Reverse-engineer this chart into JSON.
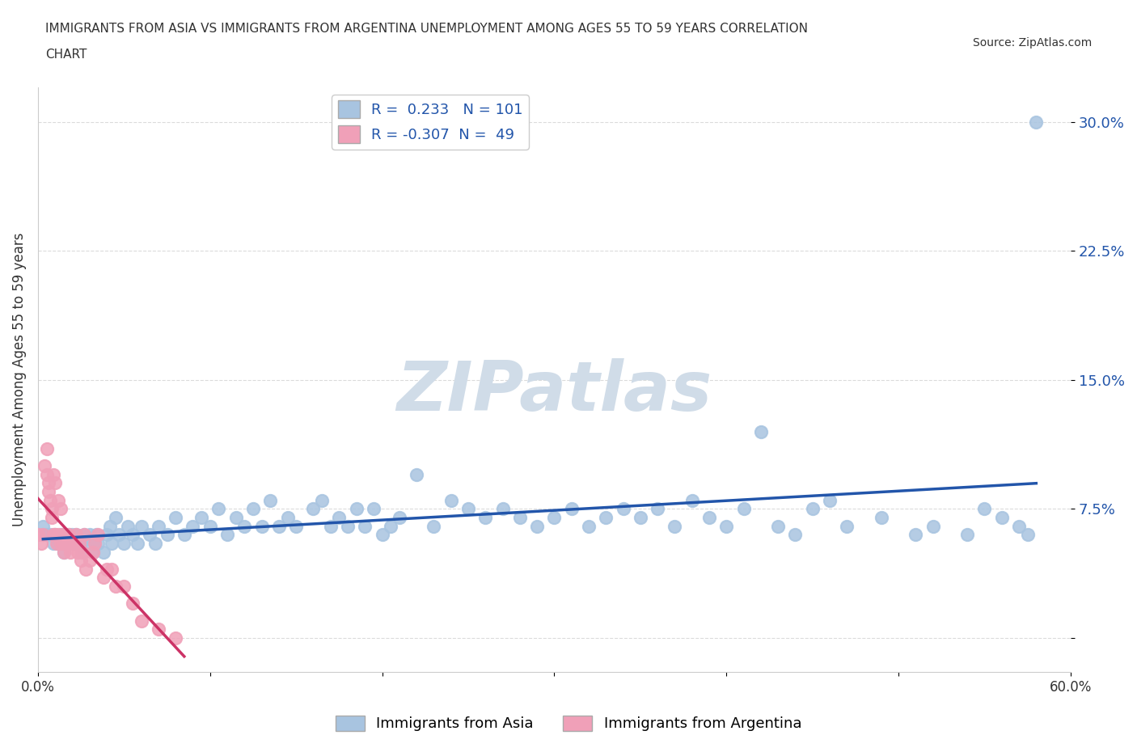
{
  "title_line1": "IMMIGRANTS FROM ASIA VS IMMIGRANTS FROM ARGENTINA UNEMPLOYMENT AMONG AGES 55 TO 59 YEARS CORRELATION",
  "title_line2": "CHART",
  "source_text": "Source: ZipAtlas.com",
  "ylabel": "Unemployment Among Ages 55 to 59 years",
  "xlim": [
    0.0,
    0.6
  ],
  "ylim": [
    -0.02,
    0.32
  ],
  "yticks": [
    0.0,
    0.075,
    0.15,
    0.225,
    0.3
  ],
  "ytick_labels": [
    "",
    "7.5%",
    "15.0%",
    "22.5%",
    "30.0%"
  ],
  "xticks": [
    0.0,
    0.1,
    0.2,
    0.3,
    0.4,
    0.5,
    0.6
  ],
  "xtick_labels": [
    "0.0%",
    "",
    "",
    "",
    "",
    "",
    "60.0%"
  ],
  "grid_color": "#cccccc",
  "background_color": "#ffffff",
  "watermark": "ZIPatlas",
  "watermark_color": "#d0dce8",
  "asia_color": "#a8c4e0",
  "argentina_color": "#f0a0b8",
  "asia_line_color": "#2255aa",
  "argentina_line_color": "#cc3366",
  "asia_R": 0.233,
  "asia_N": 101,
  "argentina_R": -0.307,
  "argentina_N": 49,
  "legend_label_asia": "Immigrants from Asia",
  "legend_label_argentina": "Immigrants from Argentina",
  "asia_x": [
    0.003,
    0.005,
    0.007,
    0.009,
    0.01,
    0.012,
    0.013,
    0.015,
    0.016,
    0.017,
    0.018,
    0.019,
    0.02,
    0.021,
    0.022,
    0.023,
    0.025,
    0.026,
    0.027,
    0.028,
    0.03,
    0.032,
    0.033,
    0.034,
    0.035,
    0.038,
    0.04,
    0.042,
    0.043,
    0.045,
    0.047,
    0.05,
    0.052,
    0.055,
    0.058,
    0.06,
    0.065,
    0.068,
    0.07,
    0.075,
    0.08,
    0.085,
    0.09,
    0.095,
    0.1,
    0.105,
    0.11,
    0.115,
    0.12,
    0.125,
    0.13,
    0.135,
    0.14,
    0.145,
    0.15,
    0.16,
    0.165,
    0.17,
    0.175,
    0.18,
    0.185,
    0.19,
    0.195,
    0.2,
    0.205,
    0.21,
    0.22,
    0.23,
    0.24,
    0.25,
    0.26,
    0.27,
    0.28,
    0.29,
    0.3,
    0.31,
    0.32,
    0.33,
    0.34,
    0.35,
    0.36,
    0.37,
    0.38,
    0.39,
    0.4,
    0.41,
    0.42,
    0.43,
    0.44,
    0.45,
    0.46,
    0.47,
    0.49,
    0.51,
    0.52,
    0.54,
    0.55,
    0.56,
    0.57,
    0.575,
    0.58
  ],
  "asia_y": [
    0.065,
    0.06,
    0.06,
    0.055,
    0.06,
    0.055,
    0.06,
    0.05,
    0.06,
    0.055,
    0.06,
    0.055,
    0.06,
    0.055,
    0.06,
    0.055,
    0.055,
    0.05,
    0.06,
    0.055,
    0.06,
    0.05,
    0.055,
    0.06,
    0.055,
    0.05,
    0.06,
    0.065,
    0.055,
    0.07,
    0.06,
    0.055,
    0.065,
    0.06,
    0.055,
    0.065,
    0.06,
    0.055,
    0.065,
    0.06,
    0.07,
    0.06,
    0.065,
    0.07,
    0.065,
    0.075,
    0.06,
    0.07,
    0.065,
    0.075,
    0.065,
    0.08,
    0.065,
    0.07,
    0.065,
    0.075,
    0.08,
    0.065,
    0.07,
    0.065,
    0.075,
    0.065,
    0.075,
    0.06,
    0.065,
    0.07,
    0.095,
    0.065,
    0.08,
    0.075,
    0.07,
    0.075,
    0.07,
    0.065,
    0.07,
    0.075,
    0.065,
    0.07,
    0.075,
    0.07,
    0.075,
    0.065,
    0.08,
    0.07,
    0.065,
    0.075,
    0.12,
    0.065,
    0.06,
    0.075,
    0.08,
    0.065,
    0.07,
    0.06,
    0.065,
    0.06,
    0.075,
    0.07,
    0.065,
    0.06,
    0.3
  ],
  "argentina_x": [
    0.0,
    0.002,
    0.003,
    0.004,
    0.005,
    0.005,
    0.006,
    0.006,
    0.007,
    0.008,
    0.008,
    0.009,
    0.009,
    0.01,
    0.01,
    0.011,
    0.012,
    0.012,
    0.013,
    0.013,
    0.014,
    0.015,
    0.015,
    0.016,
    0.017,
    0.018,
    0.019,
    0.02,
    0.021,
    0.022,
    0.023,
    0.024,
    0.025,
    0.026,
    0.027,
    0.028,
    0.03,
    0.032,
    0.033,
    0.035,
    0.038,
    0.04,
    0.043,
    0.045,
    0.05,
    0.055,
    0.06,
    0.07,
    0.08
  ],
  "argentina_y": [
    0.06,
    0.055,
    0.06,
    0.1,
    0.095,
    0.11,
    0.09,
    0.085,
    0.08,
    0.07,
    0.075,
    0.06,
    0.095,
    0.06,
    0.09,
    0.055,
    0.08,
    0.06,
    0.075,
    0.055,
    0.06,
    0.055,
    0.05,
    0.06,
    0.055,
    0.06,
    0.05,
    0.055,
    0.055,
    0.06,
    0.05,
    0.055,
    0.045,
    0.05,
    0.06,
    0.04,
    0.045,
    0.05,
    0.055,
    0.06,
    0.035,
    0.04,
    0.04,
    0.03,
    0.03,
    0.02,
    0.01,
    0.005,
    0.0
  ]
}
